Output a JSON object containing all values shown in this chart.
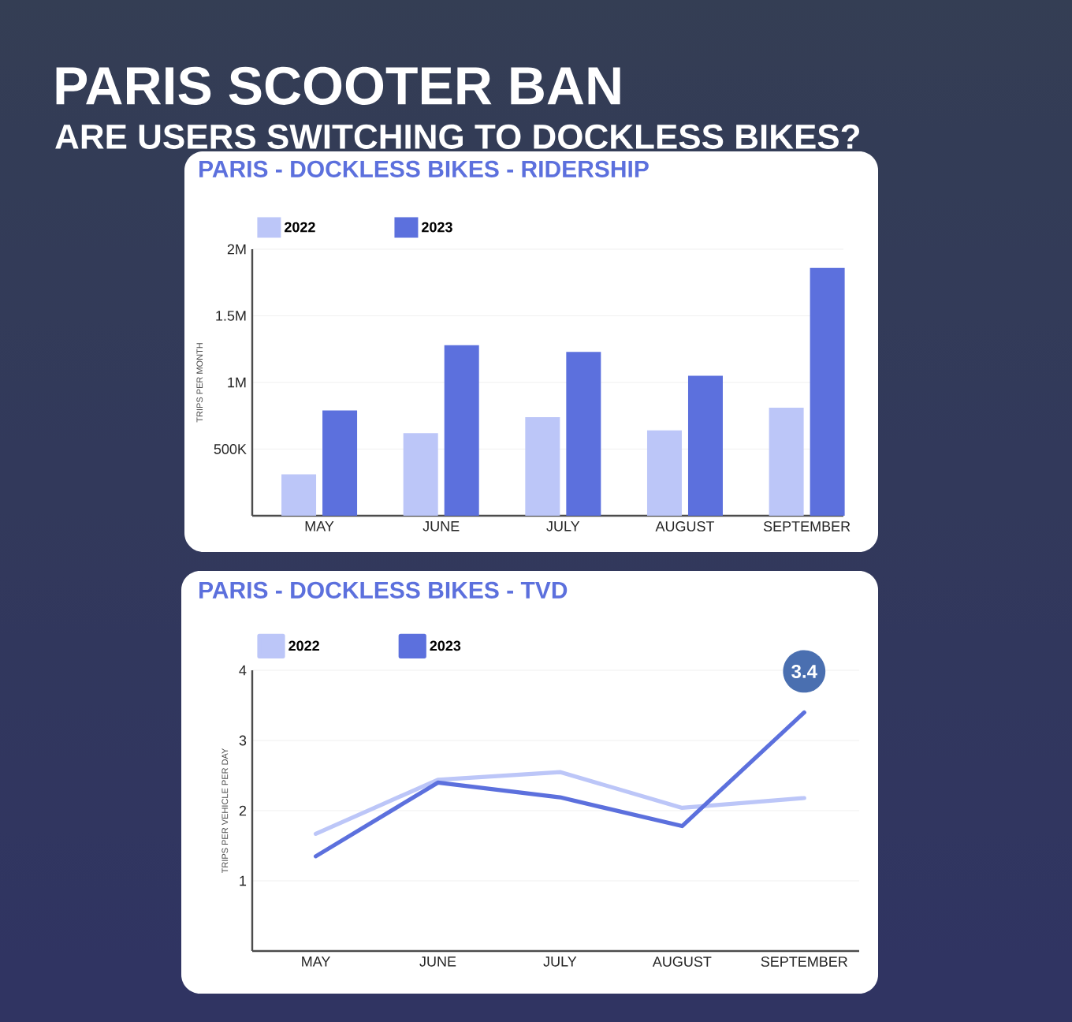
{
  "chart_data": [
    {
      "type": "other",
      "title": "PARIS SCOOTER BAN",
      "subtitle": "ARE USERS SWITCHING TO DOCKLESS BIKES?"
    },
    {
      "type": "bar",
      "title": "PARIS - DOCKLESS BIKES - RIDERSHIP",
      "ylabel": "TRIPS PER MONTH",
      "categories": [
        "MAY",
        "JUNE",
        "JULY",
        "AUGUST",
        "SEPTEMBER"
      ],
      "series": [
        {
          "name": "2022",
          "color": "#bcc6f8",
          "values": [
            310000,
            620000,
            740000,
            640000,
            810000
          ]
        },
        {
          "name": "2023",
          "color": "#5c70dd",
          "values": [
            790000,
            1280000,
            1230000,
            1050000,
            1860000
          ]
        }
      ],
      "ylim": [
        0,
        2000000
      ],
      "yticks": [
        {
          "value": 500000,
          "label": "500K"
        },
        {
          "value": 1000000,
          "label": "1M"
        },
        {
          "value": 1500000,
          "label": "1.5M"
        },
        {
          "value": 2000000,
          "label": "2M"
        }
      ],
      "grid": "y",
      "legend": "top left"
    },
    {
      "type": "line",
      "title": "PARIS - DOCKLESS BIKES - TVD",
      "ylabel": "TRIPS PER VEHICLE PER DAY",
      "categories": [
        "MAY",
        "JUNE",
        "JULY",
        "AUGUST",
        "SEPTEMBER"
      ],
      "series": [
        {
          "name": "2022",
          "color": "#bcc6f8",
          "values": [
            1.67,
            2.44,
            2.55,
            2.04,
            2.18
          ]
        },
        {
          "name": "2023",
          "color": "#5c70dd",
          "values": [
            1.35,
            2.4,
            2.19,
            1.78,
            3.4
          ],
          "value_labels": [
            null,
            null,
            null,
            null,
            "3.4"
          ]
        }
      ],
      "ylim": [
        0,
        4
      ],
      "yticks": [
        1,
        2,
        3,
        4
      ],
      "grid": "y",
      "legend": "top left",
      "marker": "none"
    }
  ]
}
